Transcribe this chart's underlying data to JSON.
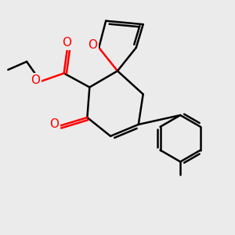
{
  "background_color": "#ebebeb",
  "bond_color": "#000000",
  "oxygen_color": "#ff0000",
  "line_width": 1.8,
  "figsize": [
    3.0,
    3.0
  ],
  "dpi": 100,
  "xlim": [
    0,
    10
  ],
  "ylim": [
    0,
    10
  ],
  "label_fs": 11
}
